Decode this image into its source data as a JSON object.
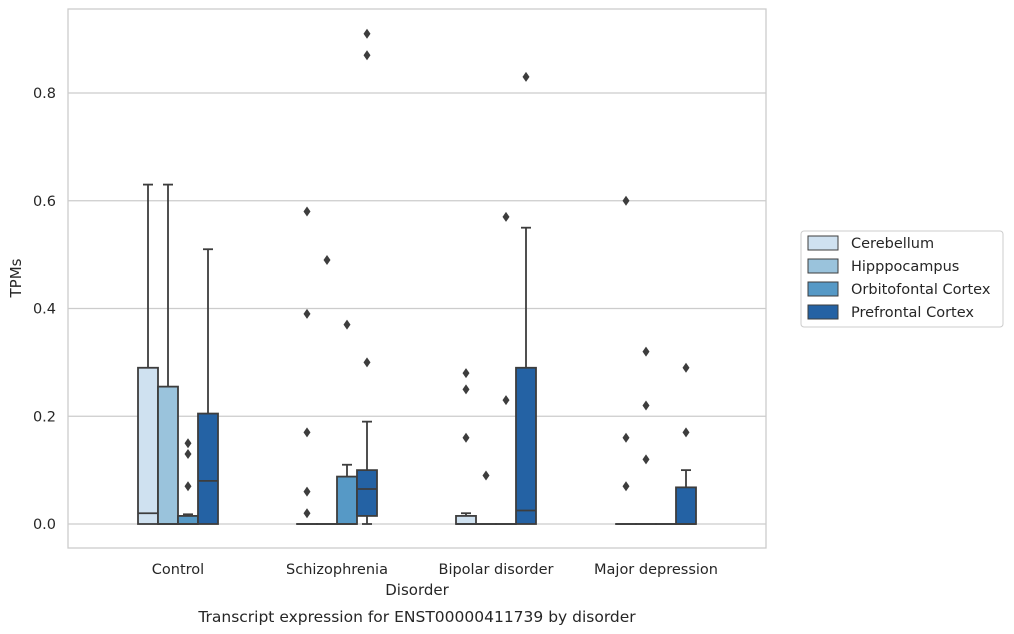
{
  "chart_data": {
    "type": "box",
    "xlabel": "Disorder",
    "ylabel": "TPMs",
    "caption": "Transcript expression for ENST00000411739 by disorder",
    "ylim": [
      -0.044,
      0.96
    ],
    "yticks": [
      "0.0",
      "0.2",
      "0.4",
      "0.6",
      "0.8"
    ],
    "ytick_values": [
      0.0,
      0.2,
      0.4,
      0.6,
      0.8
    ],
    "grid": "horizontal",
    "legend_position": "right",
    "categories": [
      "Control",
      "Schizophrenia",
      "Bipolar disorder",
      "Major depression"
    ],
    "series": [
      {
        "name": "Cerebellum",
        "color": "#cfe1f0"
      },
      {
        "name": "Hipppocampus",
        "color": "#9ac3dc"
      },
      {
        "name": "Orbitofontal Cortex",
        "color": "#5699c6"
      },
      {
        "name": "Prefrontal Cortex",
        "color": "#2462a4"
      }
    ],
    "boxes": [
      [
        {
          "q1": 0.0,
          "median": 0.02,
          "q3": 0.29,
          "whislo": 0.0,
          "whishi": 0.63,
          "fliers": []
        },
        {
          "q1": 0.0,
          "median": 0.0,
          "q3": 0.255,
          "whislo": 0.0,
          "whishi": 0.63,
          "fliers": []
        },
        {
          "q1": 0.0,
          "median": 0.0,
          "q3": 0.015,
          "whislo": 0.0,
          "whishi": 0.018,
          "fliers": [
            0.15,
            0.13,
            0.07
          ]
        },
        {
          "q1": 0.0,
          "median": 0.08,
          "q3": 0.205,
          "whislo": 0.0,
          "whishi": 0.51,
          "fliers": []
        }
      ],
      [
        {
          "q1": 0.0,
          "median": 0.0,
          "q3": 0.0,
          "whislo": 0.0,
          "whishi": 0.0,
          "fliers": [
            0.58,
            0.39,
            0.17,
            0.06,
            0.02
          ]
        },
        {
          "q1": 0.0,
          "median": 0.0,
          "q3": 0.0,
          "whislo": 0.0,
          "whishi": 0.0,
          "fliers": [
            0.49
          ]
        },
        {
          "q1": 0.0,
          "median": 0.0,
          "q3": 0.088,
          "whislo": 0.0,
          "whishi": 0.11,
          "fliers": [
            0.37
          ]
        },
        {
          "q1": 0.015,
          "median": 0.065,
          "q3": 0.1,
          "whislo": 0.0,
          "whishi": 0.19,
          "fliers": [
            0.91,
            0.87,
            0.3
          ]
        }
      ],
      [
        {
          "q1": 0.0,
          "median": 0.0,
          "q3": 0.015,
          "whislo": 0.0,
          "whishi": 0.02,
          "fliers": [
            0.28,
            0.25,
            0.16
          ]
        },
        {
          "q1": 0.0,
          "median": 0.0,
          "q3": 0.0,
          "whislo": 0.0,
          "whishi": 0.0,
          "fliers": [
            0.09
          ]
        },
        {
          "q1": 0.0,
          "median": 0.0,
          "q3": 0.0,
          "whislo": 0.0,
          "whishi": 0.0,
          "fliers": [
            0.57,
            0.23
          ]
        },
        {
          "q1": 0.0,
          "median": 0.025,
          "q3": 0.29,
          "whislo": 0.0,
          "whishi": 0.55,
          "fliers": [
            0.83
          ]
        }
      ],
      [
        {
          "q1": 0.0,
          "median": 0.0,
          "q3": 0.0,
          "whislo": 0.0,
          "whishi": 0.0,
          "fliers": [
            0.6,
            0.16,
            0.07
          ]
        },
        {
          "q1": 0.0,
          "median": 0.0,
          "q3": 0.0,
          "whislo": 0.0,
          "whishi": 0.0,
          "fliers": [
            0.32,
            0.22,
            0.12
          ]
        },
        {
          "q1": 0.0,
          "median": 0.0,
          "q3": 0.0,
          "whislo": 0.0,
          "whishi": 0.0,
          "fliers": []
        },
        {
          "q1": 0.0,
          "median": 0.0,
          "q3": 0.068,
          "whislo": 0.0,
          "whishi": 0.1,
          "fliers": [
            0.29,
            0.17
          ]
        }
      ]
    ]
  }
}
